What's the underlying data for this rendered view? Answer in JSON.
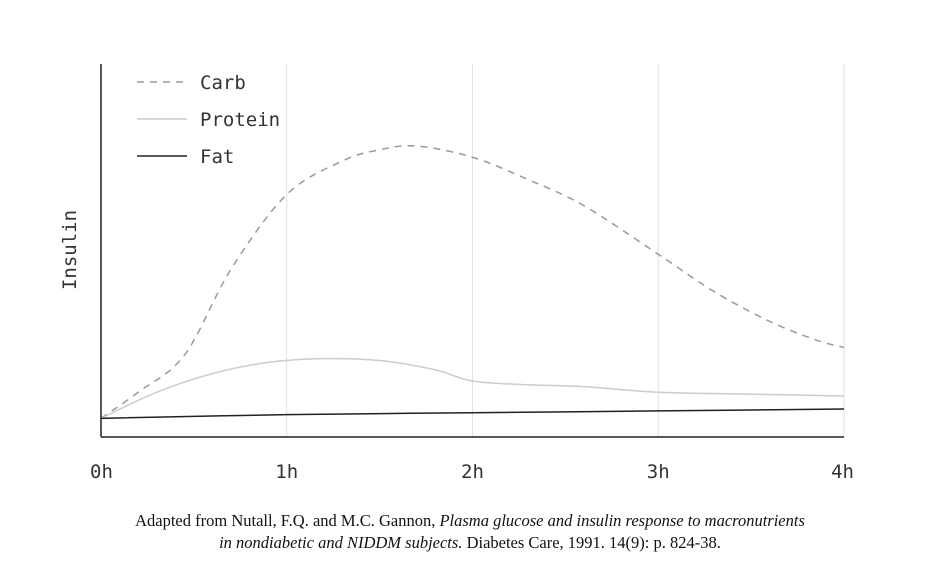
{
  "chart_data": {
    "type": "line",
    "ylabel": "Insulin",
    "xlabel": "",
    "x_ticks": [
      "0h",
      "1h",
      "2h",
      "3h",
      "4h"
    ],
    "xlim": [
      0,
      4
    ],
    "ylim": [
      0,
      100
    ],
    "grid": "vertical",
    "legend_position": "top-left",
    "series": [
      {
        "name": "Carb",
        "style": "dashed",
        "color": "#9a9a9a",
        "x": [
          0,
          0.2,
          0.45,
          0.7,
          1.0,
          1.3,
          1.5,
          1.7,
          2.0,
          2.3,
          2.6,
          3.0,
          3.3,
          3.6,
          3.85,
          4.0
        ],
        "y": [
          5,
          12,
          22,
          45,
          65,
          74,
          77,
          78,
          75,
          69,
          62,
          49,
          39,
          31,
          26,
          24
        ]
      },
      {
        "name": "Protein",
        "style": "solid",
        "color": "#cccccc",
        "x": [
          0,
          0.3,
          0.6,
          0.9,
          1.2,
          1.5,
          1.8,
          2.0,
          2.3,
          2.6,
          3.0,
          3.5,
          4.0
        ],
        "y": [
          5,
          12,
          17,
          20,
          21,
          20.5,
          18,
          15,
          14,
          13.5,
          12,
          11.5,
          11
        ]
      },
      {
        "name": "Fat",
        "style": "solid",
        "color": "#222222",
        "x": [
          0,
          1,
          2,
          3,
          4
        ],
        "y": [
          5,
          6,
          6.5,
          7,
          7.5
        ]
      }
    ]
  },
  "caption": {
    "prefix": "Adapted from Nutall, F.Q. and M.C. Gannon, ",
    "title_italic_1": "Plasma glucose and insulin response to macronutrients",
    "title_italic_2": "in nondiabetic and NIDDM subjects.",
    "suffix": " Diabetes Care, 1991. 14(9): p. 824-38."
  }
}
